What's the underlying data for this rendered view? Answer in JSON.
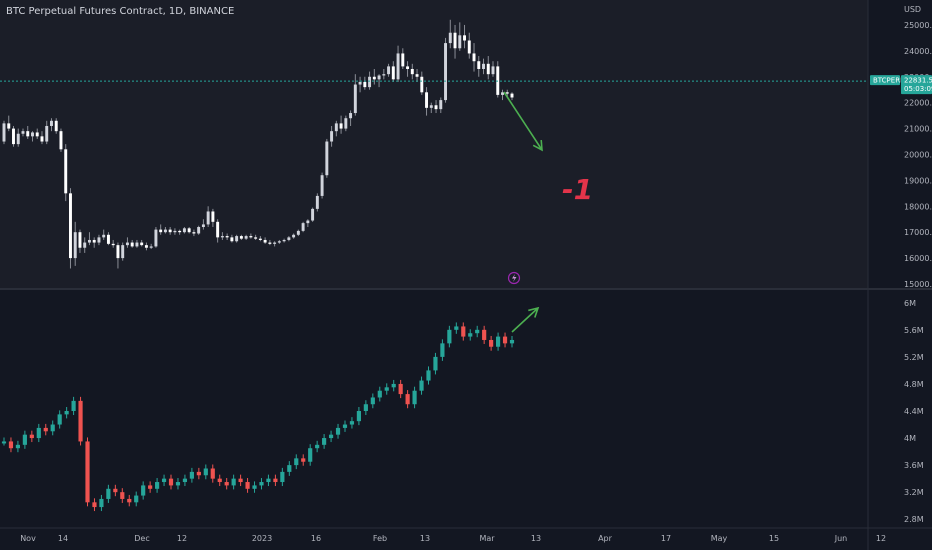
{
  "header": {
    "title": "BTC Perpetual Futures Contract, 1D, BINANCE"
  },
  "colors": {
    "background": "#131722",
    "upper_panel_bg": "#1b1e28",
    "separator": "#2a2e39",
    "candle_up": "#d1d4dc",
    "candle_down": "#ffffff",
    "vol_up": "#26a69a",
    "vol_down": "#ef5350",
    "price_line": "#26a69a",
    "arrow": "#4caf50",
    "annotation": "#e3344a"
  },
  "price_axis": {
    "unit_label": "USD",
    "ticks": [
      "25000.0",
      "24000.0",
      "23000.0",
      "22000.0",
      "21000.0",
      "20000.0",
      "19000.0",
      "18000.0",
      "17000.0",
      "16000.0",
      "15000.0"
    ]
  },
  "lower_axis": {
    "ticks": [
      "6M",
      "5.6M",
      "5.2M",
      "4.8M",
      "4.4M",
      "4M",
      "3.6M",
      "3.2M",
      "2.8M"
    ]
  },
  "current_price": {
    "symbol": "BTCPERP",
    "price": "22831.5",
    "countdown": "05:03:09",
    "value": 22831.5
  },
  "time_axis": {
    "labels": [
      "Nov",
      "14",
      "Dec",
      "12",
      "2023",
      "16",
      "Feb",
      "13",
      "Mar",
      "13",
      "Apr",
      "17",
      "May",
      "15",
      "Jun",
      "12"
    ]
  },
  "annotations": {
    "text": "-1",
    "flash_icon": "lightning-icon"
  },
  "chart_data": [
    {
      "type": "candlestick",
      "title": "BTC Perpetual Futures Contract, 1D, BINANCE",
      "ylabel": "USD",
      "ylim": [
        15000,
        25500
      ],
      "ohlc_daily": [
        [
          20500,
          21300,
          20400,
          21200
        ],
        [
          21200,
          21500,
          20900,
          21000
        ],
        [
          21000,
          21100,
          20300,
          20400
        ],
        [
          20400,
          21000,
          20300,
          20800
        ],
        [
          20800,
          21000,
          20700,
          20900
        ],
        [
          20900,
          21100,
          20600,
          20700
        ],
        [
          20700,
          20900,
          20500,
          20850
        ],
        [
          20850,
          21000,
          20600,
          20700
        ],
        [
          20700,
          20900,
          20400,
          20500
        ],
        [
          20500,
          21300,
          20400,
          21100
        ],
        [
          21100,
          21400,
          20900,
          21300
        ],
        [
          21300,
          21400,
          20800,
          20900
        ],
        [
          20900,
          21000,
          20100,
          20200
        ],
        [
          20200,
          20400,
          18200,
          18500
        ],
        [
          18500,
          18700,
          15600,
          16000
        ],
        [
          16000,
          17400,
          15700,
          17000
        ],
        [
          17000,
          17100,
          16200,
          16400
        ],
        [
          16400,
          16800,
          16200,
          16600
        ],
        [
          16600,
          17000,
          16500,
          16700
        ],
        [
          16700,
          16800,
          16400,
          16600
        ],
        [
          16600,
          16900,
          16500,
          16800
        ],
        [
          16800,
          17100,
          16700,
          16900
        ],
        [
          16900,
          17000,
          16500,
          16550
        ],
        [
          16550,
          16700,
          16400,
          16500
        ],
        [
          16500,
          16600,
          15600,
          16000
        ],
        [
          16000,
          16600,
          15900,
          16500
        ],
        [
          16500,
          16800,
          16400,
          16600
        ],
        [
          16600,
          16700,
          16400,
          16450
        ],
        [
          16450,
          16700,
          16400,
          16600
        ],
        [
          16600,
          16700,
          16450,
          16500
        ],
        [
          16500,
          16600,
          16300,
          16400
        ],
        [
          16400,
          16550,
          16350,
          16450
        ],
        [
          16450,
          17200,
          16400,
          17100
        ],
        [
          17100,
          17300,
          16900,
          17000
        ],
        [
          17000,
          17200,
          16950,
          17100
        ],
        [
          17100,
          17200,
          16900,
          17000
        ],
        [
          17000,
          17150,
          16900,
          17050
        ],
        [
          17050,
          17100,
          16900,
          17000
        ],
        [
          17000,
          17200,
          16950,
          17150
        ],
        [
          17150,
          17200,
          16950,
          17000
        ],
        [
          17000,
          17100,
          16850,
          16950
        ],
        [
          16950,
          17250,
          16900,
          17200
        ],
        [
          17200,
          17500,
          17100,
          17300
        ],
        [
          17300,
          18000,
          17200,
          17800
        ],
        [
          17800,
          17900,
          17200,
          17400
        ],
        [
          17400,
          17500,
          16600,
          16800
        ],
        [
          16800,
          17000,
          16700,
          16850
        ],
        [
          16850,
          16950,
          16700,
          16800
        ],
        [
          16800,
          16900,
          16600,
          16650
        ],
        [
          16650,
          16900,
          16600,
          16850
        ],
        [
          16850,
          16900,
          16700,
          16750
        ],
        [
          16750,
          16900,
          16700,
          16850
        ],
        [
          16850,
          16950,
          16750,
          16800
        ],
        [
          16800,
          16900,
          16700,
          16750
        ],
        [
          16750,
          16850,
          16650,
          16700
        ],
        [
          16700,
          16800,
          16550,
          16600
        ],
        [
          16600,
          16700,
          16500,
          16550
        ],
        [
          16550,
          16650,
          16450,
          16600
        ],
        [
          16600,
          16700,
          16550,
          16650
        ],
        [
          16650,
          16750,
          16600,
          16700
        ],
        [
          16700,
          16850,
          16650,
          16800
        ],
        [
          16800,
          16950,
          16750,
          16900
        ],
        [
          16900,
          17100,
          16850,
          17050
        ],
        [
          17050,
          17400,
          17000,
          17350
        ],
        [
          17350,
          17500,
          17200,
          17450
        ],
        [
          17450,
          17950,
          17400,
          17900
        ],
        [
          17900,
          18500,
          17800,
          18400
        ],
        [
          18400,
          19300,
          18300,
          19200
        ],
        [
          19200,
          20600,
          19100,
          20500
        ],
        [
          20500,
          21100,
          20300,
          20900
        ],
        [
          20900,
          21300,
          20700,
          21200
        ],
        [
          21200,
          21500,
          20800,
          21000
        ],
        [
          21000,
          21500,
          20900,
          21400
        ],
        [
          21400,
          21700,
          21100,
          21600
        ],
        [
          21600,
          23100,
          21500,
          22700
        ],
        [
          22700,
          23000,
          22400,
          22800
        ],
        [
          22800,
          23000,
          22500,
          22600
        ],
        [
          22600,
          23200,
          22500,
          23000
        ],
        [
          23000,
          23300,
          22700,
          22900
        ],
        [
          22900,
          23100,
          22600,
          23050
        ],
        [
          23050,
          23300,
          22900,
          23100
        ],
        [
          23100,
          23500,
          23000,
          23400
        ],
        [
          23400,
          23600,
          22800,
          22900
        ],
        [
          22900,
          24200,
          22800,
          23900
        ],
        [
          23900,
          24100,
          23300,
          23400
        ],
        [
          23400,
          23600,
          23000,
          23300
        ],
        [
          23300,
          23500,
          22900,
          23100
        ],
        [
          23100,
          23300,
          22800,
          23000
        ],
        [
          23000,
          23200,
          22300,
          22400
        ],
        [
          22400,
          22600,
          21500,
          21800
        ],
        [
          21800,
          22000,
          21600,
          21900
        ],
        [
          21900,
          22100,
          21600,
          21750
        ],
        [
          21750,
          22200,
          21600,
          22100
        ],
        [
          22100,
          24500,
          22000,
          24300
        ],
        [
          24300,
          25200,
          24100,
          24700
        ],
        [
          24700,
          25000,
          23700,
          24100
        ],
        [
          24100,
          25100,
          24000,
          24600
        ],
        [
          24600,
          25000,
          24100,
          24400
        ],
        [
          24400,
          24700,
          23700,
          23900
        ],
        [
          23900,
          24300,
          23200,
          23600
        ],
        [
          23600,
          23800,
          23000,
          23300
        ],
        [
          23300,
          23700,
          23100,
          23500
        ],
        [
          23500,
          23800,
          22900,
          23100
        ],
        [
          23100,
          23600,
          23000,
          23400
        ],
        [
          23400,
          23600,
          22200,
          22300
        ],
        [
          22300,
          22500,
          22100,
          22400
        ],
        [
          22400,
          22500,
          22200,
          22350
        ],
        [
          22350,
          22400,
          22100,
          22200
        ]
      ],
      "current_price": 22831.5,
      "price_axis_ticks": [
        25000,
        24000,
        23000,
        22000,
        21000,
        20000,
        19000,
        18000,
        17000,
        16000,
        15000
      ]
    },
    {
      "type": "candlestick",
      "ylim": [
        2700000,
        6100000
      ],
      "values": [
        3950000,
        3850000,
        3900000,
        4050000,
        4000000,
        4150000,
        4100000,
        4200000,
        4350000,
        4400000,
        4550000,
        3950000,
        3050000,
        2980000,
        3100000,
        3250000,
        3200000,
        3100000,
        3050000,
        3150000,
        3300000,
        3250000,
        3350000,
        3400000,
        3300000,
        3350000,
        3400000,
        3500000,
        3450000,
        3550000,
        3400000,
        3350000,
        3300000,
        3400000,
        3350000,
        3250000,
        3300000,
        3350000,
        3400000,
        3350000,
        3500000,
        3600000,
        3700000,
        3650000,
        3850000,
        3900000,
        4000000,
        4050000,
        4150000,
        4200000,
        4250000,
        4400000,
        4500000,
        4600000,
        4700000,
        4750000,
        4800000,
        4650000,
        4500000,
        4700000,
        4850000,
        5000000,
        5200000,
        5400000,
        5600000,
        5650000,
        5500000,
        5550000,
        5600000,
        5450000,
        5350000,
        5500000,
        5400000,
        5450000
      ]
    }
  ]
}
